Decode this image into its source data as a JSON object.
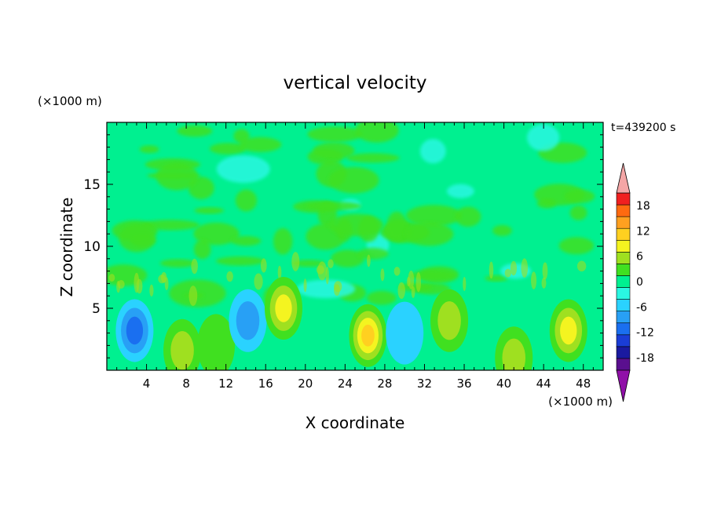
{
  "chart_data": {
    "type": "heatmap",
    "title": "vertical velocity",
    "xlabel": "X coordinate",
    "ylabel": "Z coordinate",
    "x_unit": "(×1000 m)",
    "z_unit": "(×1000 m)",
    "time_label": "t=439200 s",
    "xlim": [
      0,
      50
    ],
    "ylim": [
      0,
      20
    ],
    "x_ticks": [
      4,
      8,
      12,
      16,
      20,
      24,
      28,
      32,
      36,
      40,
      44,
      48
    ],
    "y_ticks": [
      5,
      10,
      15
    ],
    "colorbar": {
      "levels": [
        -21,
        -18,
        -15,
        -12,
        -9,
        -6,
        -3,
        0,
        3,
        6,
        9,
        12,
        15,
        18,
        21
      ],
      "tick_labels": [
        18,
        12,
        6,
        0,
        -6,
        -12,
        -18
      ],
      "colors": [
        "#5a0f8f",
        "#1a1aa0",
        "#1a3dd6",
        "#1a6ff0",
        "#28a0f5",
        "#2ad2ff",
        "#2af7e2",
        "#00f090",
        "#40e020",
        "#9fe020",
        "#f4f420",
        "#ffd020",
        "#ffa020",
        "#ff6a10",
        "#f02020"
      ],
      "under_color": "#9010a8",
      "over_color": "#f4a6a6"
    },
    "features": [
      {
        "x": 2.8,
        "z": 3.2,
        "value": -11
      },
      {
        "x": 7.6,
        "z": 1.6,
        "value": 7
      },
      {
        "x": 11.0,
        "z": 2.0,
        "value": 5
      },
      {
        "x": 14.2,
        "z": 4.0,
        "value": -6
      },
      {
        "x": 17.8,
        "z": 5.0,
        "value": 9
      },
      {
        "x": 26.3,
        "z": 2.8,
        "value": 13
      },
      {
        "x": 34.5,
        "z": 4.0,
        "value": 6
      },
      {
        "x": 30.0,
        "z": 3.0,
        "value": -5
      },
      {
        "x": 41.0,
        "z": 1.0,
        "value": 6
      },
      {
        "x": 46.5,
        "z": 3.2,
        "value": 10
      }
    ]
  }
}
